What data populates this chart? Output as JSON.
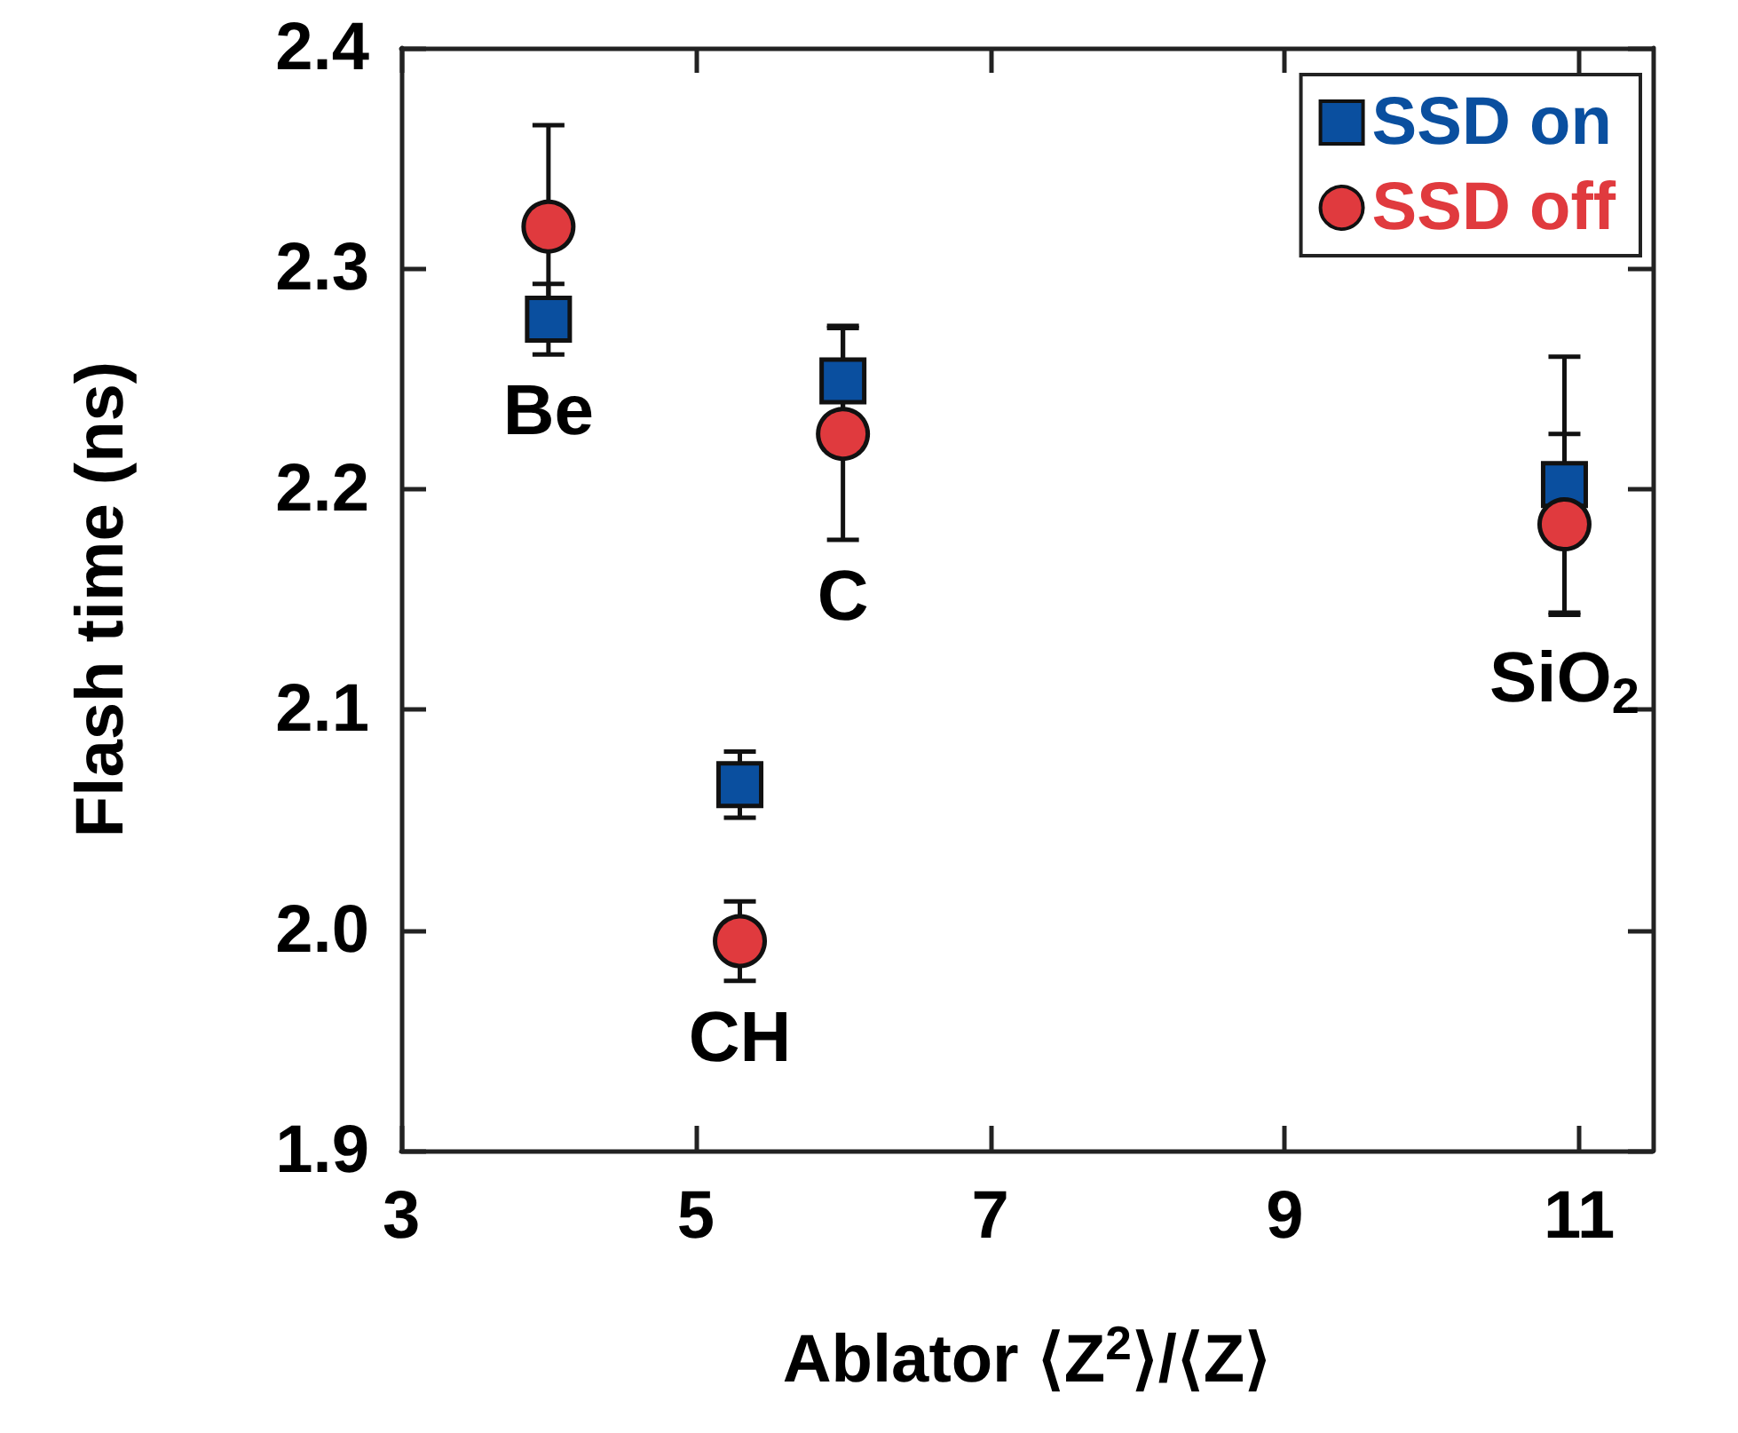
{
  "chart_data": {
    "type": "scatter",
    "xlabel": "Ablator ⟨Z$^{2}$⟩/⟨Z⟩",
    "ylabel": "Flash time (ns)",
    "x": [
      4.0,
      5.3,
      6.0,
      10.9
    ],
    "series": [
      {
        "name": "SSD on",
        "color": "#0a4f9f",
        "marker": "square",
        "values": [
          2.277,
          2.066,
          2.249,
          2.202
        ],
        "errors": [
          0.016,
          0.015,
          0.025,
          0.058
        ]
      },
      {
        "name": "SSD off",
        "color": "#e03a3e",
        "marker": "circle",
        "values": [
          2.319,
          1.995,
          2.225,
          2.184
        ],
        "errors": [
          0.046,
          0.018,
          0.048,
          0.041
        ]
      }
    ],
    "xlim": [
      3,
      11.5
    ],
    "xticks": [
      3,
      5,
      7,
      9,
      11
    ],
    "ylim": [
      1.9,
      2.4
    ],
    "yticks": [
      1.9,
      {
        "value": 2.0,
        "label": "2.0"
      },
      2.1,
      2.2,
      2.3,
      2.4
    ],
    "legend": "top right",
    "annotations": [
      {
        "text": "Be",
        "x": 4.0,
        "y": 2.277
      },
      {
        "text": "CH",
        "x": 5.3,
        "y": 1.995
      },
      {
        "text": "C",
        "x": 6.0,
        "y": 2.225
      },
      {
        "text": "SiO$_{2}$",
        "x": 10.9,
        "y": 2.184
      }
    ]
  }
}
